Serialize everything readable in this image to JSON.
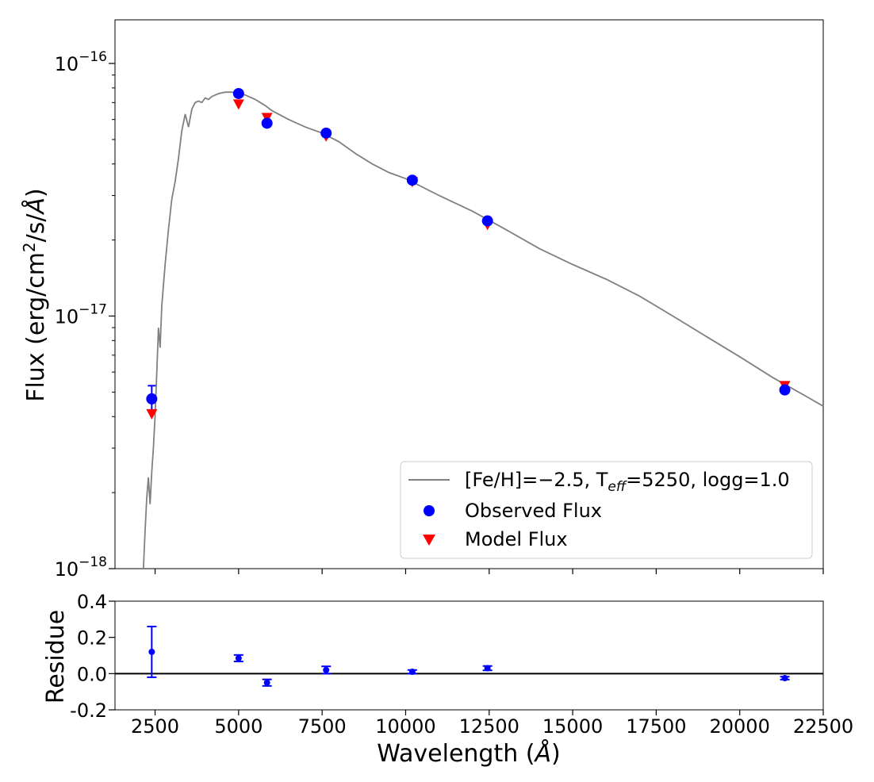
{
  "chart_data": [
    {
      "type": "scatter",
      "ylabel_main": "Flux (erg/cm",
      "ylabel_sup": "2",
      "ylabel_tail": "/s/",
      "ylabel_unit": "Å",
      "ylabel_close": ")",
      "yscale": "log",
      "ylim": [
        1e-18,
        1.5e-16
      ],
      "xlim": [
        1300,
        22500
      ],
      "y_ticks": [
        {
          "value": 1e-16,
          "base": "10",
          "exp": "−16"
        },
        {
          "value": 1e-17,
          "base": "10",
          "exp": "−17"
        },
        {
          "value": 1e-18,
          "base": "10",
          "exp": "−18"
        }
      ],
      "legend": {
        "placement": "lower-right",
        "model_label": {
          "pre": "[Fe/H]=−2.5, T",
          "sub": "eff",
          "post": "=5250, logg=1.0"
        },
        "observed_label": "Observed Flux",
        "modelflux_label": "Model Flux"
      },
      "model_spectrum": {
        "color": "#808080",
        "x": [
          2150,
          2200,
          2250,
          2300,
          2350,
          2400,
          2450,
          2500,
          2550,
          2600,
          2650,
          2700,
          2800,
          2900,
          3000,
          3100,
          3200,
          3300,
          3400,
          3500,
          3600,
          3700,
          3800,
          3900,
          4000,
          4100,
          4200,
          4300,
          4400,
          4600,
          4800,
          5000,
          5200,
          5500,
          5800,
          6000,
          6500,
          7000,
          7500,
          8000,
          8500,
          9000,
          9500,
          10000,
          11000,
          12000,
          13000,
          14000,
          15000,
          16000,
          17000,
          18000,
          19000,
          20000,
          21000,
          22000,
          22500
        ],
        "y": [
          1e-18,
          1.4e-18,
          1.9e-18,
          2.3e-18,
          1.8e-18,
          2.4e-18,
          3e-18,
          4e-18,
          6e-18,
          9e-18,
          7.5e-18,
          1.1e-17,
          1.6e-17,
          2.2e-17,
          2.9e-17,
          3.4e-17,
          4.2e-17,
          5.4e-17,
          6.3e-17,
          5.6e-17,
          6.6e-17,
          7e-17,
          7.1e-17,
          7e-17,
          7.3e-17,
          7.2e-17,
          7.4e-17,
          7.5e-17,
          7.6e-17,
          7.7e-17,
          7.7e-17,
          7.6e-17,
          7.5e-17,
          7.2e-17,
          6.8e-17,
          6.5e-17,
          6e-17,
          5.6e-17,
          5.3e-17,
          4.9e-17,
          4.4e-17,
          4e-17,
          3.7e-17,
          3.5e-17,
          3e-17,
          2.6e-17,
          2.2e-17,
          1.85e-17,
          1.6e-17,
          1.4e-17,
          1.2e-17,
          1e-17,
          8.3e-18,
          6.9e-18,
          5.7e-18,
          4.8e-18,
          4.4e-18
        ]
      },
      "observed": {
        "color": "#0000ff",
        "x": [
          2400,
          5000,
          5850,
          7620,
          10200,
          12450,
          21350
        ],
        "y": [
          4.7e-18,
          7.6e-17,
          5.8e-17,
          5.3e-17,
          3.45e-17,
          2.38e-17,
          5.1e-18
        ],
        "yerr_upper": [
          5.3e-18,
          null,
          null,
          null,
          null,
          null,
          null
        ]
      },
      "model_points": {
        "color": "#ff0000",
        "x": [
          2400,
          5000,
          5850,
          7620,
          10200,
          12450,
          21350
        ],
        "y": [
          4.1e-18,
          6.9e-17,
          6.1e-17,
          5.15e-17,
          3.4e-17,
          2.3e-17,
          5.3e-18
        ]
      }
    },
    {
      "type": "scatter",
      "ylabel": "Residue",
      "xlabel_main": "Wavelength (",
      "xlabel_unit": "Å",
      "xlabel_close": ")",
      "xlim": [
        1300,
        22500
      ],
      "ylim": [
        -0.2,
        0.4
      ],
      "x_ticks": [
        2500,
        5000,
        7500,
        10000,
        12500,
        15000,
        17500,
        20000,
        22500
      ],
      "y_ticks": [
        {
          "value": 0.4,
          "label": "0.4"
        },
        {
          "value": 0.2,
          "label": "0.2"
        },
        {
          "value": 0.0,
          "label": "0.0"
        },
        {
          "value": -0.2,
          "label": "-0.2"
        }
      ],
      "zero_line": 0,
      "points": {
        "color": "#0000ff",
        "x": [
          2400,
          5000,
          5850,
          7620,
          10200,
          12450,
          21350
        ],
        "y": [
          0.12,
          0.085,
          -0.05,
          0.02,
          0.01,
          0.03,
          -0.025
        ],
        "err": [
          0.14,
          0.018,
          0.018,
          0.02,
          0.01,
          0.012,
          0.008
        ]
      }
    }
  ]
}
